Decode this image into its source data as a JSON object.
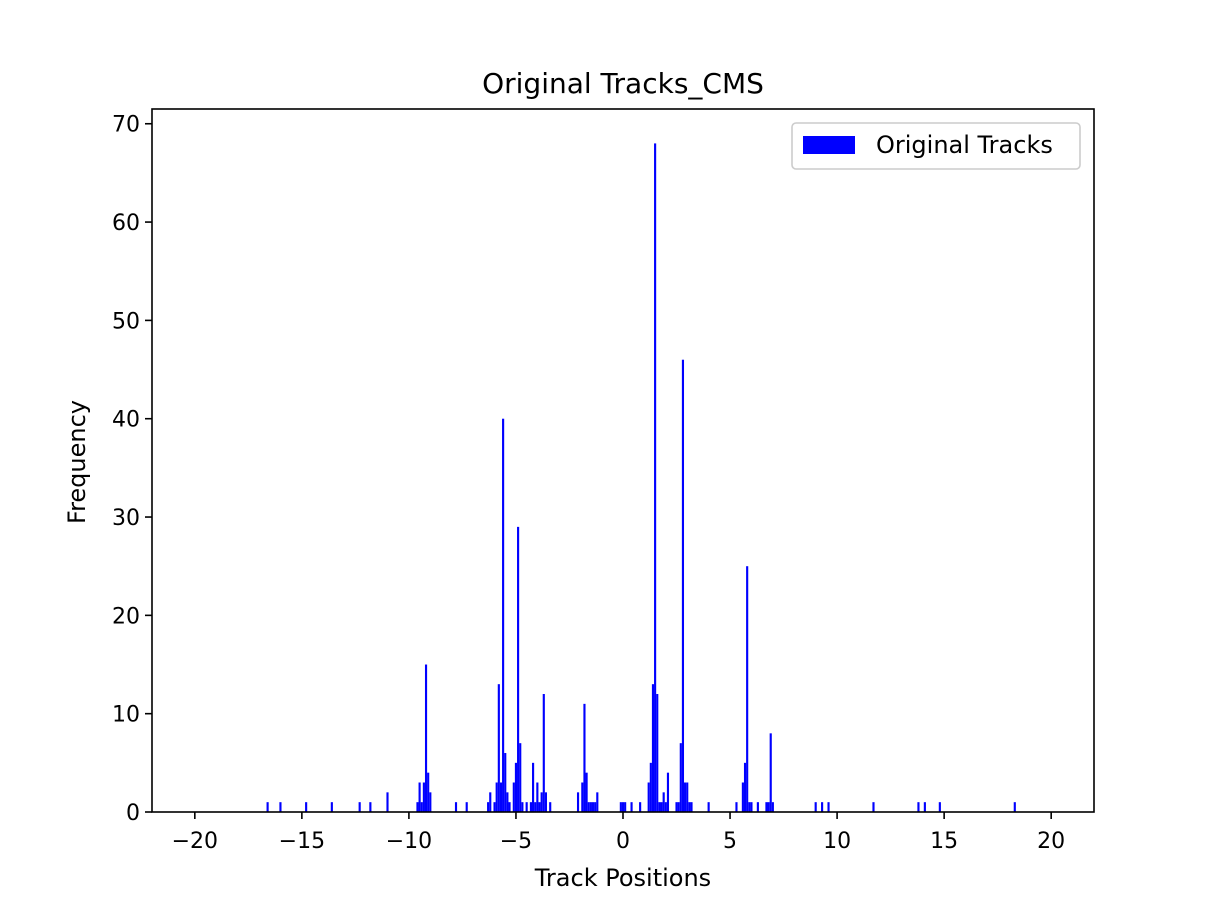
{
  "chart_data": {
    "type": "bar",
    "title": "Original Tracks_CMS",
    "xlabel": "Track Positions",
    "ylabel": "Frequency",
    "xlim": [
      -22,
      22
    ],
    "ylim": [
      0,
      71.5
    ],
    "xticks": [
      -20,
      -15,
      -10,
      -5,
      0,
      5,
      10,
      15,
      20
    ],
    "xtick_labels": [
      "−20",
      "−15",
      "−10",
      "−5",
      "0",
      "5",
      "10",
      "15",
      "20"
    ],
    "yticks": [
      0,
      10,
      20,
      30,
      40,
      50,
      60,
      70
    ],
    "ytick_labels": [
      "0",
      "10",
      "20",
      "30",
      "40",
      "50",
      "60",
      "70"
    ],
    "bin_width": 0.1,
    "grid": false,
    "legend": {
      "position": "top-right",
      "label": "Original Tracks"
    },
    "color": "#0000ff",
    "series": [
      {
        "name": "Original Tracks",
        "points": [
          [
            -16.6,
            1
          ],
          [
            -16.0,
            1
          ],
          [
            -14.8,
            1
          ],
          [
            -13.6,
            1
          ],
          [
            -12.3,
            1
          ],
          [
            -11.8,
            1
          ],
          [
            -11.0,
            2
          ],
          [
            -9.6,
            1
          ],
          [
            -9.5,
            3
          ],
          [
            -9.4,
            1
          ],
          [
            -9.3,
            3
          ],
          [
            -9.2,
            15
          ],
          [
            -9.1,
            4
          ],
          [
            -9.0,
            2
          ],
          [
            -7.8,
            1
          ],
          [
            -7.3,
            1
          ],
          [
            -6.3,
            1
          ],
          [
            -6.2,
            2
          ],
          [
            -6.0,
            1
          ],
          [
            -5.9,
            3
          ],
          [
            -5.8,
            13
          ],
          [
            -5.7,
            3
          ],
          [
            -5.6,
            40
          ],
          [
            -5.5,
            6
          ],
          [
            -5.4,
            2
          ],
          [
            -5.3,
            1
          ],
          [
            -5.1,
            3
          ],
          [
            -5.0,
            5
          ],
          [
            -4.9,
            29
          ],
          [
            -4.8,
            7
          ],
          [
            -4.7,
            1
          ],
          [
            -4.5,
            1
          ],
          [
            -4.3,
            1
          ],
          [
            -4.2,
            5
          ],
          [
            -4.1,
            1
          ],
          [
            -4.0,
            3
          ],
          [
            -3.9,
            1
          ],
          [
            -3.8,
            2
          ],
          [
            -3.7,
            12
          ],
          [
            -3.6,
            2
          ],
          [
            -3.4,
            1
          ],
          [
            -2.1,
            2
          ],
          [
            -1.9,
            3
          ],
          [
            -1.8,
            11
          ],
          [
            -1.7,
            4
          ],
          [
            -1.6,
            1
          ],
          [
            -1.5,
            1
          ],
          [
            -1.4,
            1
          ],
          [
            -1.3,
            1
          ],
          [
            -1.2,
            2
          ],
          [
            -0.1,
            1
          ],
          [
            0.0,
            1
          ],
          [
            0.1,
            1
          ],
          [
            0.4,
            1
          ],
          [
            0.8,
            1
          ],
          [
            1.2,
            3
          ],
          [
            1.3,
            5
          ],
          [
            1.4,
            13
          ],
          [
            1.5,
            68
          ],
          [
            1.6,
            12
          ],
          [
            1.7,
            1
          ],
          [
            1.8,
            1
          ],
          [
            1.9,
            2
          ],
          [
            2.0,
            1
          ],
          [
            2.1,
            4
          ],
          [
            2.5,
            1
          ],
          [
            2.6,
            1
          ],
          [
            2.7,
            7
          ],
          [
            2.8,
            46
          ],
          [
            2.9,
            3
          ],
          [
            3.0,
            3
          ],
          [
            3.1,
            1
          ],
          [
            3.2,
            1
          ],
          [
            4.0,
            1
          ],
          [
            5.3,
            1
          ],
          [
            5.6,
            3
          ],
          [
            5.7,
            5
          ],
          [
            5.8,
            25
          ],
          [
            5.9,
            1
          ],
          [
            6.0,
            1
          ],
          [
            6.3,
            1
          ],
          [
            6.7,
            1
          ],
          [
            6.8,
            1
          ],
          [
            6.9,
            8
          ],
          [
            7.0,
            1
          ],
          [
            9.0,
            1
          ],
          [
            9.3,
            1
          ],
          [
            9.6,
            1
          ],
          [
            11.7,
            1
          ],
          [
            13.8,
            1
          ],
          [
            14.1,
            1
          ],
          [
            14.8,
            1
          ],
          [
            18.3,
            1
          ]
        ]
      }
    ]
  }
}
